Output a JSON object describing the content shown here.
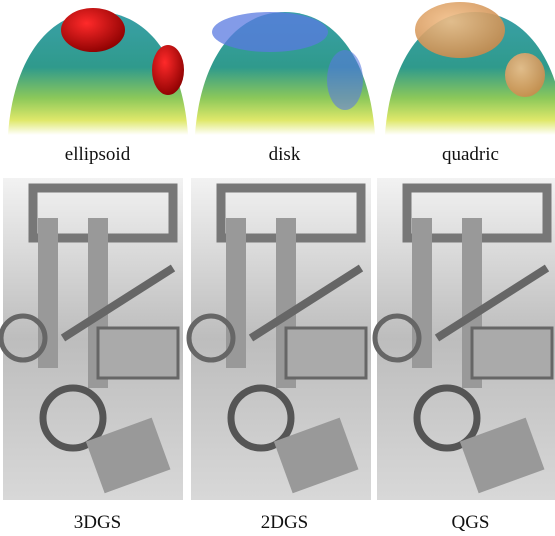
{
  "top_row": {
    "labels": [
      "ellipsoid",
      "disk",
      "quadric"
    ]
  },
  "bottom_row": {
    "labels": [
      "3DGS",
      "2DGS",
      "QGS"
    ]
  }
}
